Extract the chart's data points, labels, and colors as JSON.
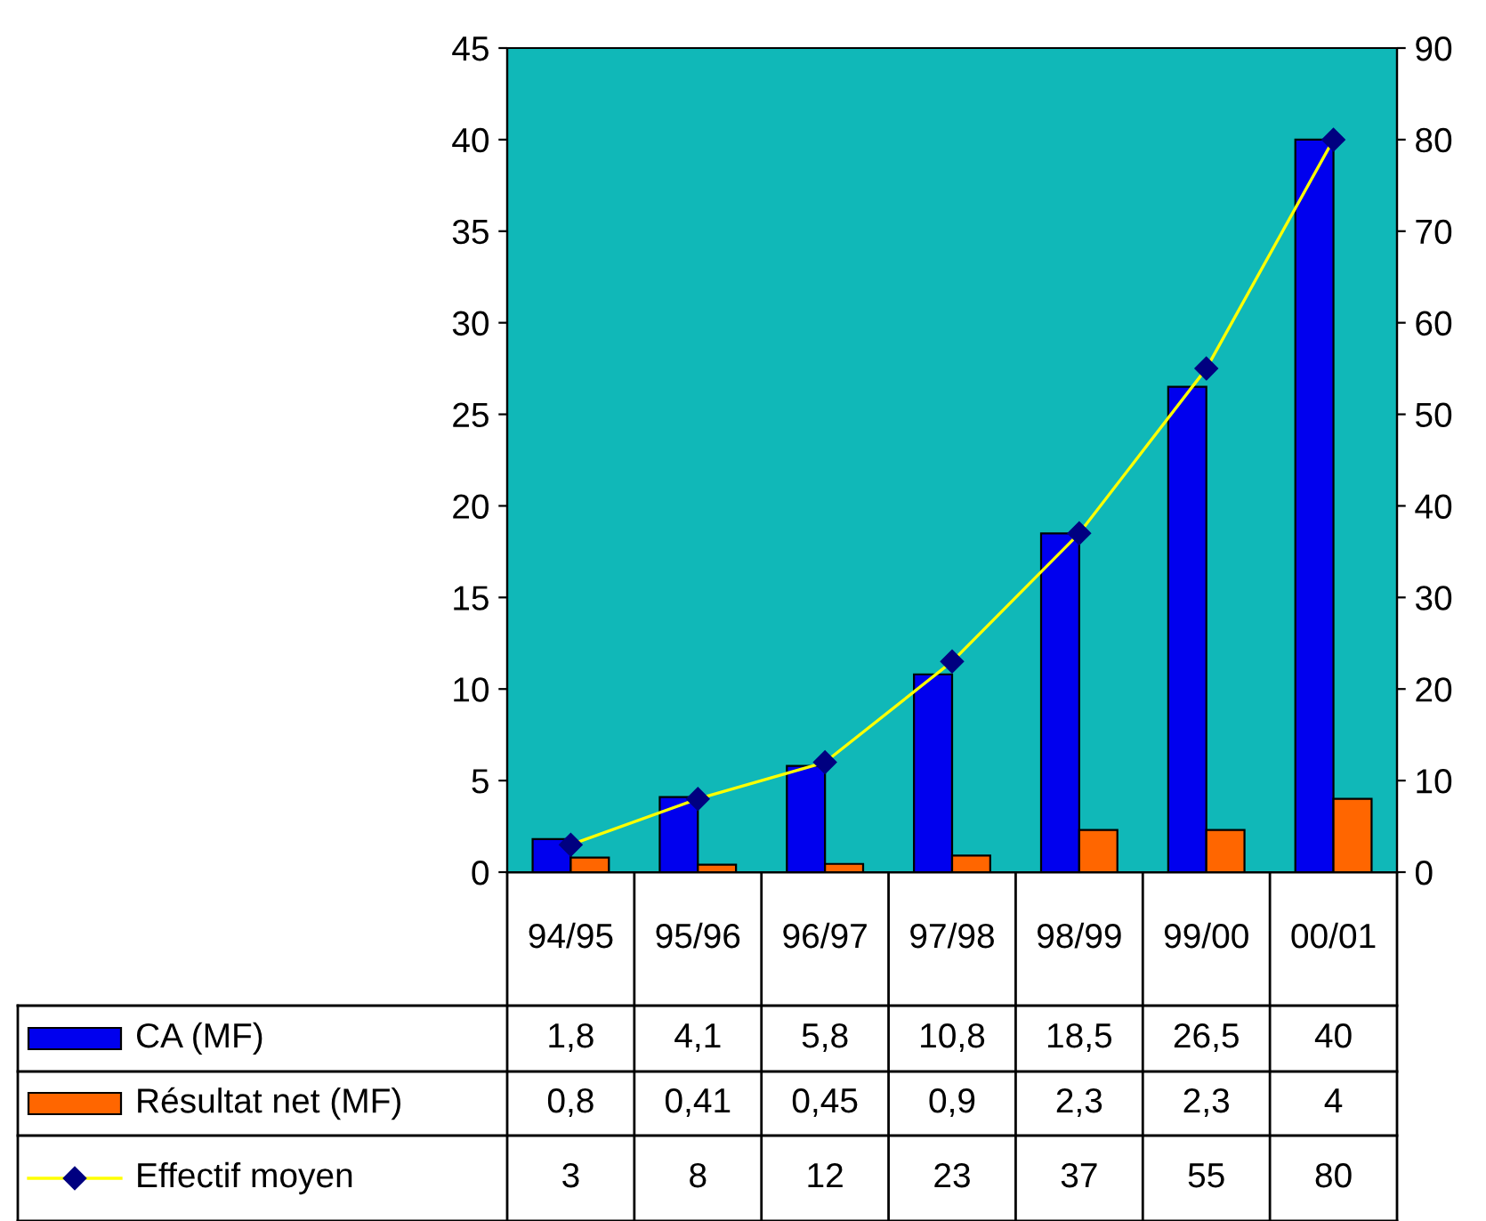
{
  "chart_data": {
    "type": "bar",
    "categories": [
      "94/95",
      "95/96",
      "96/97",
      "97/98",
      "98/99",
      "99/00",
      "00/01"
    ],
    "series": [
      {
        "name": "CA (MF)",
        "color": "#0000ee",
        "values": [
          1.8,
          4.1,
          5.8,
          10.8,
          18.5,
          26.5,
          40
        ],
        "value_labels": [
          "1,8",
          "4,1",
          "5,8",
          "10,8",
          "18,5",
          "26,5",
          "40"
        ]
      },
      {
        "name": "Résultat net (MF)",
        "color": "#ff6600",
        "values": [
          0.8,
          0.41,
          0.45,
          0.9,
          2.3,
          2.3,
          4
        ],
        "value_labels": [
          "0,8",
          "0,41",
          "0,45",
          "0,9",
          "2,3",
          "2,3",
          "4"
        ]
      },
      {
        "name": "Effectif moyen",
        "type": "line",
        "axis": "y2",
        "color": "#ffff00",
        "marker": "diamond",
        "values": [
          3,
          8,
          12,
          23,
          37,
          55,
          80
        ],
        "value_labels": [
          "3",
          "8",
          "12",
          "23",
          "37",
          "55",
          "80"
        ]
      }
    ],
    "ylim": [
      0,
      45
    ],
    "yticks": [
      0,
      5,
      10,
      15,
      20,
      25,
      30,
      35,
      40,
      45
    ],
    "y2lim": [
      0,
      90
    ],
    "y2ticks": [
      0,
      10,
      20,
      30,
      40,
      50,
      60,
      70,
      80,
      90
    ],
    "grid": false,
    "legend": "bottom"
  }
}
